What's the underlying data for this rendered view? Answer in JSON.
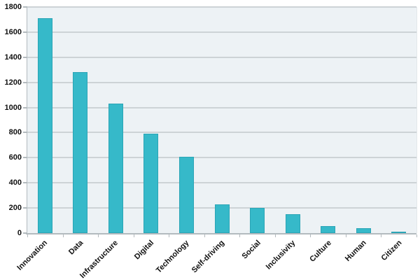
{
  "chart_data": {
    "type": "bar",
    "categories": [
      "Innovation",
      "Data",
      "Infrastructure",
      "Digital",
      "Technology",
      "Self-driving",
      "Social",
      "Inclusivity",
      "Culture",
      "Human",
      "Citizen"
    ],
    "values": [
      1710,
      1280,
      1030,
      790,
      610,
      230,
      200,
      150,
      55,
      40,
      12
    ],
    "title": "",
    "xlabel": "",
    "ylabel": "",
    "ylim": [
      0,
      1800
    ],
    "y_ticks": [
      0,
      200,
      400,
      600,
      800,
      1000,
      1200,
      1400,
      1600,
      1800
    ],
    "grid": true,
    "legend": false,
    "colors": {
      "bar_fill": "#36b9c9",
      "bar_border": "#2ba5b6",
      "plot_background": "#edf2f5",
      "gridline": "#cdd3d6",
      "axis_line": "#b3babe",
      "tick_mark": "#b3babe",
      "label_text": "#111111",
      "page_background": "#ffffff"
    }
  }
}
